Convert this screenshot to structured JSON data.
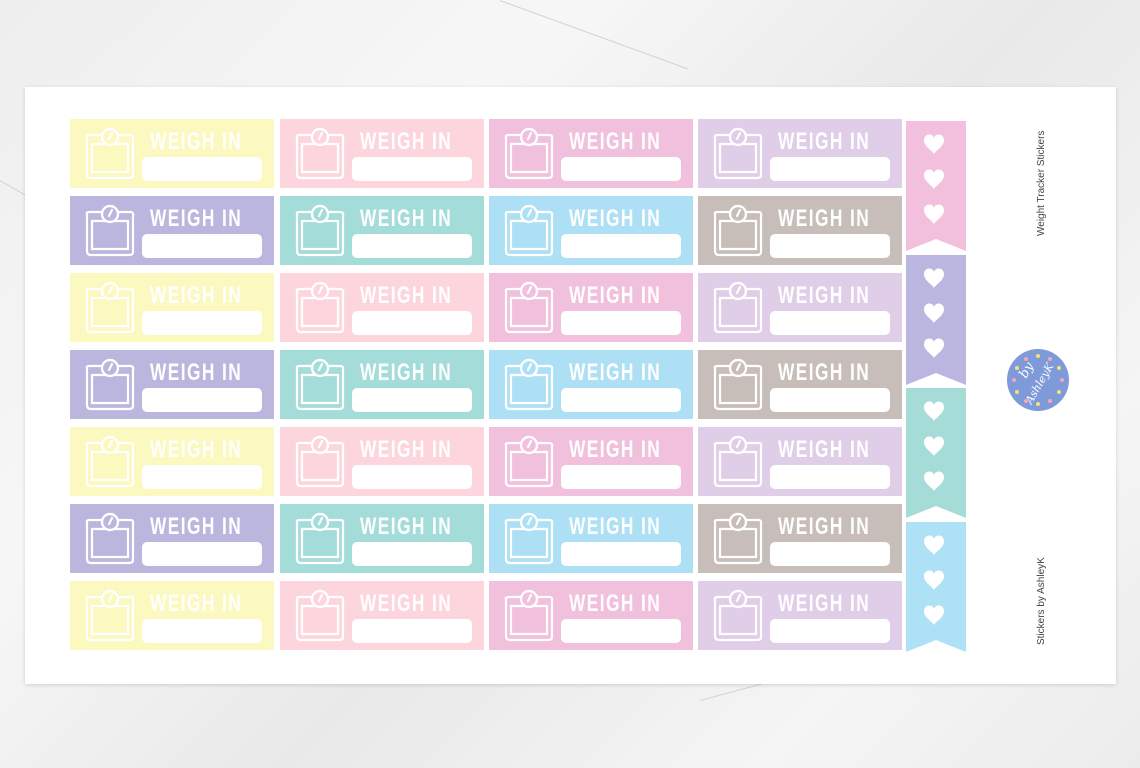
{
  "sticker_label": "WEIGH IN",
  "sheet_title": "Weight Tracker Stickers",
  "sheet_credit": "Stickers by AshleyK",
  "logo_text": "by AshleyK",
  "icons": {
    "sticker": "bathroom-scale-icon",
    "flag": "heart-icon"
  },
  "colors": {
    "row_odd": [
      "#fbf8c0",
      "#fdd6dd",
      "#f1c0dd",
      "#e0cde7"
    ],
    "row_even": [
      "#bab6de",
      "#a4dcd9",
      "#ade0f5",
      "#c7bdb9"
    ],
    "flags": [
      "#f2c0dc",
      "#bbb6e0",
      "#a5dcd8",
      "#aee0f6"
    ],
    "logo": "#7f9ad8"
  },
  "rows": 7,
  "columns": 4
}
